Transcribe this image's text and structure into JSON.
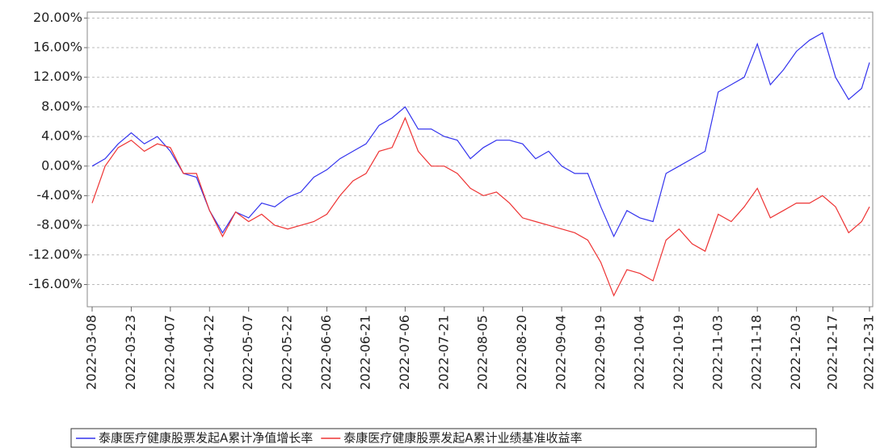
{
  "chart_data": {
    "type": "line",
    "x": [
      "2022-03-08",
      "2022-03-13",
      "2022-03-18",
      "2022-03-23",
      "2022-03-28",
      "2022-04-02",
      "2022-04-07",
      "2022-04-12",
      "2022-04-17",
      "2022-04-22",
      "2022-04-27",
      "2022-05-02",
      "2022-05-07",
      "2022-05-12",
      "2022-05-17",
      "2022-05-22",
      "2022-05-27",
      "2022-06-01",
      "2022-06-06",
      "2022-06-11",
      "2022-06-16",
      "2022-06-21",
      "2022-06-26",
      "2022-07-01",
      "2022-07-06",
      "2022-07-11",
      "2022-07-16",
      "2022-07-21",
      "2022-07-26",
      "2022-07-31",
      "2022-08-05",
      "2022-08-10",
      "2022-08-15",
      "2022-08-20",
      "2022-08-25",
      "2022-08-30",
      "2022-09-04",
      "2022-09-09",
      "2022-09-14",
      "2022-09-19",
      "2022-09-24",
      "2022-09-29",
      "2022-10-04",
      "2022-10-09",
      "2022-10-14",
      "2022-10-19",
      "2022-10-24",
      "2022-10-29",
      "2022-11-03",
      "2022-11-08",
      "2022-11-13",
      "2022-11-18",
      "2022-11-23",
      "2022-11-28",
      "2022-12-03",
      "2022-12-08",
      "2022-12-13",
      "2022-12-18",
      "2022-12-23",
      "2022-12-28",
      "2022-12-31"
    ],
    "series": [
      {
        "name": "泰康医疗健康股票发起A累计净值增长率",
        "color": "#3333ee",
        "values": [
          0,
          1.0,
          3,
          4.5,
          3,
          4,
          2,
          -1,
          -1.5,
          -6,
          -9,
          -6.2,
          -7,
          -5,
          -5.5,
          -4.2,
          -3.5,
          -1.5,
          -0.5,
          1,
          2,
          3,
          5.5,
          6.5,
          8,
          5,
          5,
          4,
          3.5,
          1,
          2.5,
          3.5,
          3.5,
          3,
          1,
          2,
          0,
          -1,
          -1,
          -5.5,
          -9.5,
          -6,
          -7,
          -7.5,
          -1,
          0,
          1,
          2,
          10,
          11,
          12,
          16.5,
          11,
          13,
          15.5,
          17,
          18,
          12,
          9,
          10.5,
          14
        ]
      },
      {
        "name": "泰康医疗健康股票发起A累计业绩基准收益率",
        "color": "#ee3333",
        "values": [
          -5,
          0,
          2.5,
          3.5,
          2,
          3,
          2.5,
          -1,
          -1,
          -6,
          -9.5,
          -6.2,
          -7.5,
          -6.5,
          -8,
          -8.5,
          -8,
          -7.5,
          -6.5,
          -4,
          -2,
          -1,
          2,
          2.5,
          6.5,
          2,
          0,
          0,
          -1,
          -3,
          -4,
          -3.5,
          -5,
          -7,
          -7.5,
          -8,
          -8.5,
          -9,
          -10,
          -13,
          -17.5,
          -14,
          -14.5,
          -15.5,
          -10,
          -8.5,
          -10.5,
          -11.5,
          -6.5,
          -7.5,
          -5.5,
          -3,
          -7,
          -6,
          -5,
          -5,
          -4,
          -5.5,
          -9,
          -7.5,
          -5.5
        ]
      }
    ],
    "xlim": [
      "2022-03-08",
      "2022-12-31"
    ],
    "xticks": [
      "2022-03-08",
      "2022-03-23",
      "2022-04-07",
      "2022-04-22",
      "2022-05-07",
      "2022-05-22",
      "2022-06-06",
      "2022-06-21",
      "2022-07-06",
      "2022-07-21",
      "2022-08-05",
      "2022-08-20",
      "2022-09-04",
      "2022-09-19",
      "2022-10-04",
      "2022-10-19",
      "2022-11-03",
      "2022-11-18",
      "2022-12-03",
      "2022-12-17",
      "2022-12-31"
    ],
    "ylim": [
      -19,
      20.8
    ],
    "yticks": [
      {
        "value": 20,
        "label": "20.00%"
      },
      {
        "value": 16,
        "label": "16.00%"
      },
      {
        "value": 12,
        "label": "12.00%"
      },
      {
        "value": 8,
        "label": "8.00%"
      },
      {
        "value": 4,
        "label": "4.00%"
      },
      {
        "value": 0,
        "label": "0.00%"
      },
      {
        "value": -4,
        "label": "-4.00%"
      },
      {
        "value": -8,
        "label": "-8.00%"
      },
      {
        "value": -12,
        "label": "-12.00%"
      },
      {
        "value": -16,
        "label": "-16.00%"
      }
    ],
    "grid": true
  }
}
